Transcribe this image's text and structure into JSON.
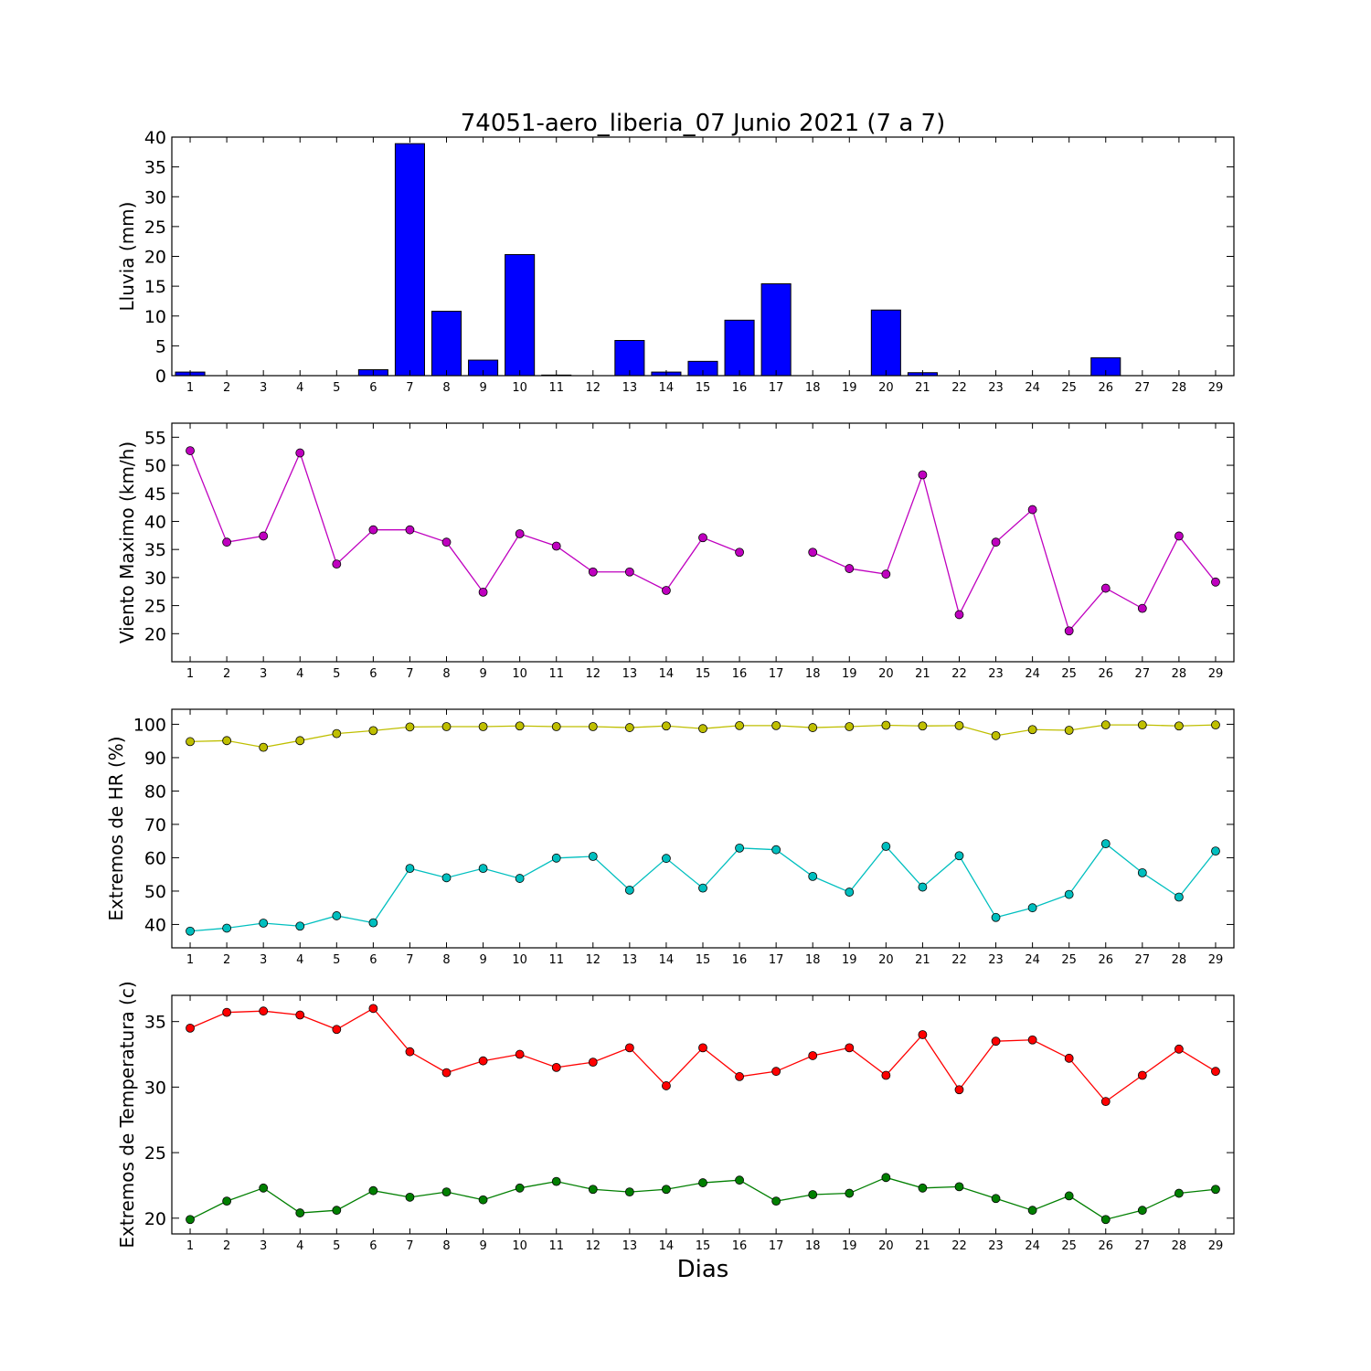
{
  "title": "74051-aero_liberia_07 Junio 2021  (7 a 7)",
  "xlabel": "Dias",
  "chart_data": [
    {
      "type": "bar",
      "ylabel": "Lluvia (mm)",
      "x": [
        1,
        2,
        3,
        4,
        5,
        6,
        7,
        8,
        9,
        10,
        11,
        12,
        13,
        14,
        15,
        16,
        17,
        18,
        19,
        20,
        21,
        22,
        23,
        24,
        25,
        26,
        27,
        28,
        29
      ],
      "ylim": [
        0,
        40
      ],
      "yticks": [
        0,
        5,
        10,
        15,
        20,
        25,
        30,
        35,
        40
      ],
      "series": [
        {
          "color": "#0000ff",
          "values": [
            0.6,
            0,
            0,
            0,
            0,
            1.0,
            38.9,
            10.8,
            2.6,
            20.3,
            0.1,
            0,
            5.9,
            0.6,
            2.4,
            9.3,
            15.4,
            0,
            0,
            11.0,
            0.5,
            0,
            0,
            0,
            0,
            3.0,
            0,
            0,
            0
          ]
        }
      ]
    },
    {
      "type": "line",
      "ylabel": "Viento Maximo (km/h)",
      "x": [
        1,
        2,
        3,
        4,
        5,
        6,
        7,
        8,
        9,
        10,
        11,
        12,
        13,
        14,
        15,
        16,
        17,
        18,
        19,
        20,
        21,
        22,
        23,
        24,
        25,
        26,
        27,
        28,
        29
      ],
      "ylim": [
        15,
        57.5
      ],
      "yticks": [
        20,
        25,
        30,
        35,
        40,
        45,
        50,
        55
      ],
      "series": [
        {
          "color": "#bf00bf",
          "values": [
            52.6,
            36.3,
            37.4,
            52.2,
            32.4,
            38.5,
            38.5,
            36.3,
            27.4,
            37.8,
            35.6,
            31.0,
            31.0,
            27.7,
            37.1,
            34.5,
            null,
            34.5,
            31.6,
            30.6,
            48.3,
            23.4,
            36.3,
            42.1,
            20.5,
            28.1,
            24.5,
            37.4,
            29.2
          ]
        }
      ]
    },
    {
      "type": "line",
      "ylabel": "Extremos de HR (%)",
      "x": [
        1,
        2,
        3,
        4,
        5,
        6,
        7,
        8,
        9,
        10,
        11,
        12,
        13,
        14,
        15,
        16,
        17,
        18,
        19,
        20,
        21,
        22,
        23,
        24,
        25,
        26,
        27,
        28,
        29
      ],
      "ylim": [
        33,
        104.5
      ],
      "yticks": [
        40,
        50,
        60,
        70,
        80,
        90,
        100
      ],
      "series": [
        {
          "color": "#bfbf00",
          "values": [
            94.8,
            95.1,
            93.1,
            95.1,
            97.2,
            98.1,
            99.2,
            99.3,
            99.3,
            99.5,
            99.3,
            99.3,
            99.0,
            99.5,
            98.7,
            99.6,
            99.6,
            99.0,
            99.3,
            99.7,
            99.5,
            99.6,
            96.6,
            98.4,
            98.2,
            99.8,
            99.8,
            99.5,
            99.8
          ]
        },
        {
          "color": "#00bfbf",
          "values": [
            38.0,
            38.9,
            40.4,
            39.5,
            42.6,
            40.5,
            56.8,
            54.0,
            56.8,
            53.8,
            59.9,
            60.4,
            50.3,
            59.8,
            50.9,
            62.9,
            62.4,
            54.4,
            49.7,
            63.4,
            51.2,
            60.6,
            42.1,
            45.0,
            49.0,
            64.2,
            55.5,
            48.2,
            62.0
          ]
        }
      ]
    },
    {
      "type": "line",
      "ylabel": "Extremos de Temperatura (c)",
      "x": [
        1,
        2,
        3,
        4,
        5,
        6,
        7,
        8,
        9,
        10,
        11,
        12,
        13,
        14,
        15,
        16,
        17,
        18,
        19,
        20,
        21,
        22,
        23,
        24,
        25,
        26,
        27,
        28,
        29
      ],
      "ylim": [
        18.8,
        37
      ],
      "yticks": [
        20,
        25,
        30,
        35
      ],
      "series": [
        {
          "color": "#ff0000",
          "values": [
            34.5,
            35.7,
            35.8,
            35.5,
            34.4,
            36.0,
            32.7,
            31.1,
            32.0,
            32.5,
            31.5,
            31.9,
            33.0,
            30.1,
            33.0,
            30.8,
            31.2,
            32.4,
            33.0,
            30.9,
            34.0,
            29.8,
            33.5,
            33.6,
            32.2,
            28.9,
            30.9,
            32.9,
            31.2
          ]
        },
        {
          "color": "#007f00",
          "values": [
            19.9,
            21.3,
            22.3,
            20.4,
            20.6,
            22.1,
            21.6,
            22.0,
            21.4,
            22.3,
            22.8,
            22.2,
            22.0,
            22.2,
            22.7,
            22.9,
            21.3,
            21.8,
            21.9,
            23.1,
            22.3,
            22.4,
            21.5,
            20.6,
            21.7,
            19.9,
            20.6,
            21.9,
            22.2
          ]
        }
      ]
    }
  ]
}
